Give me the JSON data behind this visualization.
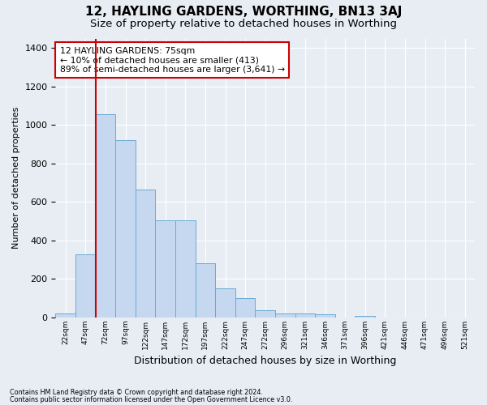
{
  "title": "12, HAYLING GARDENS, WORTHING, BN13 3AJ",
  "subtitle": "Size of property relative to detached houses in Worthing",
  "xlabel": "Distribution of detached houses by size in Worthing",
  "ylabel": "Number of detached properties",
  "categories": [
    "22sqm",
    "47sqm",
    "72sqm",
    "97sqm",
    "122sqm",
    "147sqm",
    "172sqm",
    "197sqm",
    "222sqm",
    "247sqm",
    "272sqm",
    "296sqm",
    "321sqm",
    "346sqm",
    "371sqm",
    "396sqm",
    "421sqm",
    "446sqm",
    "471sqm",
    "496sqm",
    "521sqm"
  ],
  "values": [
    20,
    330,
    1055,
    920,
    665,
    505,
    505,
    283,
    150,
    100,
    40,
    20,
    20,
    15,
    0,
    10,
    0,
    0,
    0,
    0,
    0
  ],
  "bar_color": "#c5d8f0",
  "bar_edge_color": "#6aaad4",
  "marker_line_color": "#cc0000",
  "annotation_line1": "12 HAYLING GARDENS: 75sqm",
  "annotation_line2": "← 10% of detached houses are smaller (413)",
  "annotation_line3": "89% of semi-detached houses are larger (3,641) →",
  "annotation_box_facecolor": "#ffffff",
  "annotation_box_edgecolor": "#cc0000",
  "footnote1": "Contains HM Land Registry data © Crown copyright and database right 2024.",
  "footnote2": "Contains public sector information licensed under the Open Government Licence v3.0.",
  "ylim": [
    0,
    1450
  ],
  "background_color": "#e8edf4",
  "title_fontsize": 11,
  "subtitle_fontsize": 9.5,
  "xlabel_fontsize": 9,
  "ylabel_fontsize": 8,
  "bar_width": 1.0
}
